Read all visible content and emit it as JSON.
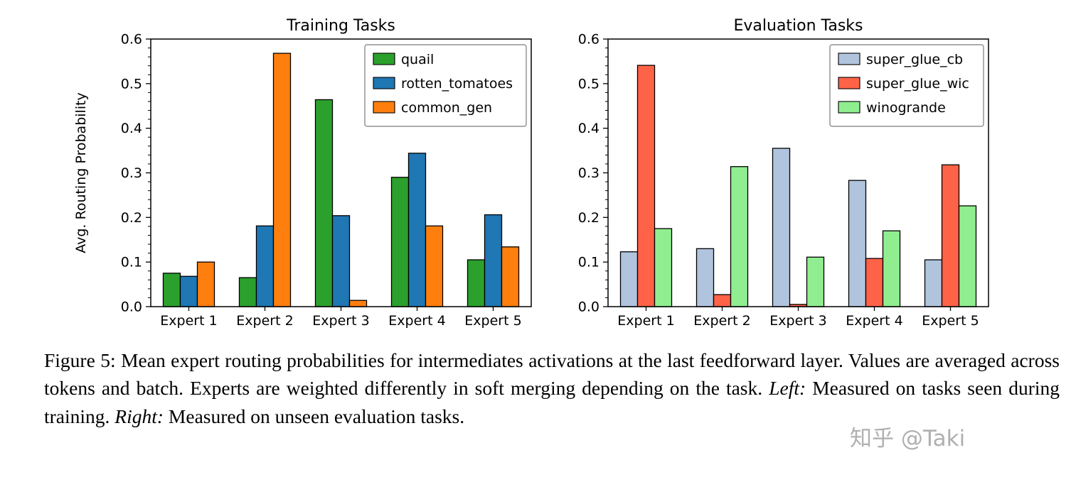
{
  "figure": {
    "caption": {
      "segments": [
        {
          "text": "Figure 5: Mean expert routing probabilities for intermediates activations at the last feedforward layer. Values are averaged across tokens and batch. Experts are weighted differently in soft merging depending on the task. "
        },
        {
          "text": "Left:",
          "italic": true
        },
        {
          "text": " Measured on tasks seen during training. "
        },
        {
          "text": "Right:",
          "italic": true
        },
        {
          "text": " Measured on unseen evaluation tasks."
        }
      ]
    },
    "watermark": "知乎 @Taki"
  },
  "chart_data": [
    {
      "type": "bar",
      "title": "Training Tasks",
      "categories": [
        "Expert 1",
        "Expert 2",
        "Expert 3",
        "Expert 4",
        "Expert 5"
      ],
      "series": [
        {
          "name": "quail",
          "color": "#2ca02c",
          "values": [
            0.075,
            0.065,
            0.464,
            0.29,
            0.105
          ]
        },
        {
          "name": "rotten_tomatoes",
          "color": "#1f77b4",
          "values": [
            0.068,
            0.181,
            0.204,
            0.344,
            0.206
          ]
        },
        {
          "name": "common_gen",
          "color": "#ff7f0e",
          "values": [
            0.1,
            0.568,
            0.014,
            0.181,
            0.134
          ]
        }
      ],
      "xlabel": "",
      "ylabel": "Avg. Routing Probability",
      "ylim": [
        0,
        0.6
      ],
      "yticks": [
        0.0,
        0.1,
        0.2,
        0.3,
        0.4,
        0.5,
        0.6
      ],
      "grid": false,
      "legend_position": "upper right",
      "bar_edge_color": "#000000"
    },
    {
      "type": "bar",
      "title": "Evaluation Tasks",
      "categories": [
        "Expert 1",
        "Expert 2",
        "Expert 3",
        "Expert 4",
        "Expert 5"
      ],
      "series": [
        {
          "name": "super_glue_cb",
          "color": "#b0c4de",
          "values": [
            0.123,
            0.13,
            0.355,
            0.283,
            0.105
          ]
        },
        {
          "name": "super_glue_wic",
          "color": "#ff6347",
          "values": [
            0.541,
            0.027,
            0.005,
            0.108,
            0.318
          ]
        },
        {
          "name": "winogrande",
          "color": "#90ee90",
          "values": [
            0.175,
            0.314,
            0.111,
            0.17,
            0.226
          ]
        }
      ],
      "xlabel": "",
      "ylabel": "",
      "ylim": [
        0,
        0.6
      ],
      "yticks": [
        0.0,
        0.1,
        0.2,
        0.3,
        0.4,
        0.5,
        0.6
      ],
      "grid": false,
      "legend_position": "upper right",
      "bar_edge_color": "#000000"
    }
  ]
}
